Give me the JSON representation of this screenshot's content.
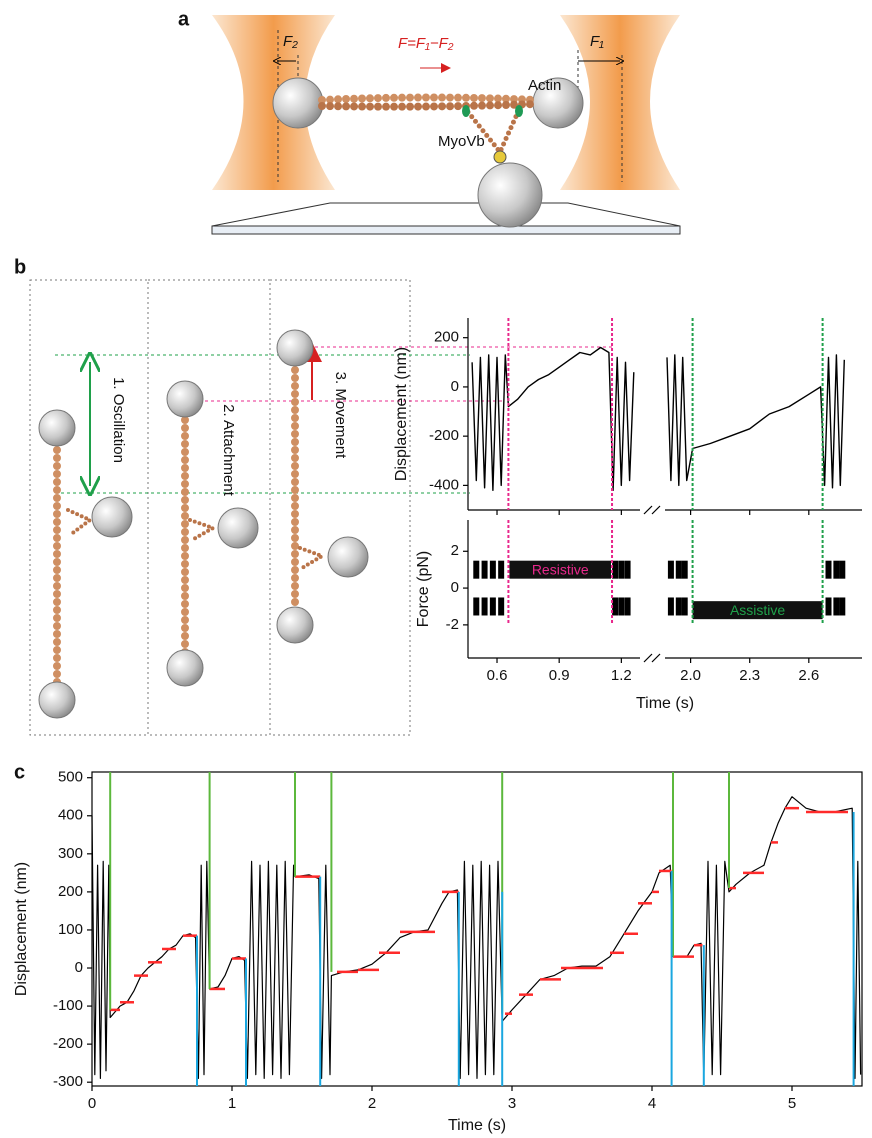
{
  "panel_labels": [
    "a",
    "b",
    "c"
  ],
  "diagram_a": {
    "f2": "F₂",
    "force_eq": "F=F₁−F₂",
    "f1": "F₁",
    "actin": "Actin",
    "myosin": "MyoVb"
  },
  "diagram_b": {
    "steps": [
      "1. Oscillation",
      "2. Attachment",
      "3. Movement"
    ]
  },
  "chart_data": [
    {
      "type": "line",
      "ylabel": "Displacement (nm)",
      "ylim": [
        -500,
        280
      ],
      "yticks": [
        -400,
        -200,
        0,
        200
      ],
      "x_segments": [
        {
          "xlim": [
            0.46,
            1.29
          ],
          "xticks": [
            0.6,
            0.9,
            1.2
          ]
        },
        {
          "xlim": [
            1.87,
            2.87
          ],
          "xticks": [
            {
              "value": 2,
              "label": "2.0"
            },
            2.3,
            2.6
          ]
        }
      ],
      "series": [
        {
          "color": "#000000",
          "x": [
            0.48,
            0.5,
            0.52,
            0.54,
            0.56,
            0.58,
            0.6,
            0.62,
            0.64,
            0.655,
            0.7,
            0.75,
            0.8,
            0.85,
            0.9,
            0.95,
            1.0,
            1.05,
            1.1,
            1.14,
            1.16,
            1.18,
            1.2,
            1.22,
            1.24,
            1.26,
            1.5,
            1.88,
            1.9,
            1.92,
            1.94,
            1.96,
            1.98,
            2.01,
            2.1,
            2.2,
            2.3,
            2.4,
            2.5,
            2.6,
            2.66,
            2.68,
            2.7,
            2.72,
            2.74,
            2.76,
            2.78
          ],
          "values": [
            100,
            -380,
            120,
            -410,
            130,
            -420,
            120,
            -400,
            130,
            -80,
            -50,
            0,
            30,
            50,
            80,
            110,
            140,
            130,
            160,
            140,
            -420,
            120,
            -400,
            100,
            -380,
            60,
            null,
            120,
            -380,
            130,
            -400,
            120,
            -380,
            -250,
            -230,
            -200,
            -170,
            -110,
            -80,
            -30,
            0,
            -400,
            120,
            -410,
            130,
            -400,
            110
          ]
        }
      ],
      "markers": [
        {
          "color": "#e8288c",
          "x": [
            0.655,
            1.155
          ]
        },
        {
          "color": "#1fa04a",
          "x": [
            2.01,
            2.67
          ]
        }
      ]
    },
    {
      "type": "scatter",
      "xlabel": "Time (s)",
      "ylabel": "Force  (pN)",
      "ylim": [
        -3.8,
        3.7
      ],
      "yticks": [
        -2,
        0,
        2
      ],
      "x_segments": [
        {
          "xlim": [
            0.46,
            1.29
          ],
          "xticks": [
            0.6,
            0.9,
            1.2
          ]
        },
        {
          "xlim": [
            1.87,
            2.87
          ],
          "xticks": [
            {
              "value": 2,
              "label": "2.0"
            },
            2.3,
            2.6
          ]
        }
      ],
      "series": [
        {
          "color": "#000000",
          "x": [
            0.5,
            0.5,
            0.54,
            0.54,
            0.58,
            0.58,
            0.62,
            0.62,
            1.17,
            1.17,
            1.2,
            1.2,
            1.23,
            1.23,
            1.9,
            1.9,
            1.94,
            1.94,
            1.97,
            1.97,
            2.7,
            2.7,
            2.74,
            2.74,
            2.77,
            2.77
          ],
          "values": [
            1,
            -1,
            1,
            -1,
            1,
            -1,
            1,
            -1,
            1,
            -1,
            1,
            -1,
            1,
            -1,
            1,
            -1,
            1,
            -1,
            1,
            -1,
            1,
            -1,
            1,
            -1,
            1,
            -1
          ]
        }
      ],
      "bands": [
        {
          "label": "Resistive",
          "label_color": "#e8288c",
          "x": [
            0.66,
            1.15
          ],
          "value": 1.0
        },
        {
          "label": "Assistive",
          "label_color": "#1fa04a",
          "x": [
            2.01,
            2.67
          ],
          "value": -1.2
        }
      ],
      "markers": [
        {
          "color": "#e8288c",
          "x": [
            0.655,
            1.155
          ]
        },
        {
          "color": "#1fa04a",
          "x": [
            2.01,
            2.67
          ]
        }
      ]
    },
    {
      "type": "line",
      "xlabel": "Time (s)",
      "ylabel": "Displacement (nm)",
      "xlim": [
        0,
        5.5
      ],
      "xticks": [
        0,
        1,
        2,
        3,
        4,
        5
      ],
      "ylim": [
        -310,
        515
      ],
      "yticks": [
        -300,
        -200,
        -100,
        0,
        100,
        200,
        300,
        400,
        500
      ],
      "series": [
        {
          "color": "#000000",
          "x": [
            0,
            0.02,
            0.04,
            0.06,
            0.08,
            0.1,
            0.12,
            0.13,
            0.2,
            0.25,
            0.3,
            0.35,
            0.4,
            0.45,
            0.5,
            0.55,
            0.6,
            0.65,
            0.7,
            0.74,
            0.76,
            0.78,
            0.8,
            0.82,
            0.84,
            0.9,
            0.95,
            1.0,
            1.05,
            1.09,
            1.11,
            1.14,
            1.17,
            1.2,
            1.23,
            1.26,
            1.29,
            1.32,
            1.35,
            1.38,
            1.41,
            1.44,
            1.45,
            1.55,
            1.62,
            1.64,
            1.67,
            1.7,
            1.71,
            1.8,
            1.9,
            2.0,
            2.1,
            2.2,
            2.3,
            2.4,
            2.5,
            2.55,
            2.61,
            2.63,
            2.66,
            2.69,
            2.72,
            2.75,
            2.78,
            2.81,
            2.84,
            2.87,
            2.9,
            2.93,
            3.0,
            3.1,
            3.2,
            3.3,
            3.4,
            3.5,
            3.6,
            3.7,
            3.8,
            3.9,
            4.0,
            4.05,
            4.13,
            4.15,
            4.25,
            4.3,
            4.35,
            4.37,
            4.4,
            4.43,
            4.46,
            4.49,
            4.52,
            4.55,
            4.6,
            4.7,
            4.8,
            4.85,
            4.9,
            4.95,
            5.0,
            5.1,
            5.2,
            5.3,
            5.43,
            5.45,
            5.47,
            5.49
          ],
          "values": [
            400,
            -280,
            270,
            -290,
            280,
            -270,
            270,
            -130,
            -100,
            -90,
            -60,
            -20,
            0,
            15,
            30,
            50,
            60,
            85,
            90,
            80,
            -290,
            270,
            -280,
            280,
            -55,
            -50,
            -20,
            25,
            30,
            20,
            -290,
            280,
            -280,
            270,
            -290,
            280,
            -280,
            270,
            -290,
            280,
            -280,
            270,
            240,
            245,
            235,
            -290,
            270,
            -280,
            -20,
            -10,
            -5,
            10,
            40,
            80,
            95,
            100,
            170,
            200,
            205,
            -290,
            280,
            -280,
            270,
            -290,
            280,
            -280,
            270,
            -280,
            280,
            -140,
            -110,
            -70,
            -30,
            -20,
            0,
            5,
            5,
            30,
            90,
            150,
            200,
            250,
            270,
            30,
            30,
            60,
            65,
            -290,
            280,
            -280,
            270,
            -280,
            280,
            200,
            220,
            250,
            270,
            330,
            380,
            420,
            450,
            420,
            410,
            410,
            420,
            -290,
            280,
            -280
          ]
        }
      ],
      "levels": {
        "color": "#ff2a2a",
        "start": [
          0.13,
          0.2,
          0.3,
          0.4,
          0.5,
          0.65,
          0.84,
          1.0,
          1.45,
          1.75,
          1.9,
          2.05,
          2.2,
          2.5,
          2.95,
          3.05,
          3.2,
          3.35,
          3.7,
          3.8,
          3.9,
          4.0,
          4.05,
          4.15,
          4.3,
          4.55,
          4.65,
          4.85,
          4.95,
          5.1
        ],
        "end": [
          0.2,
          0.3,
          0.4,
          0.5,
          0.6,
          0.75,
          0.95,
          1.1,
          1.63,
          1.9,
          2.05,
          2.2,
          2.45,
          2.62,
          3.0,
          3.15,
          3.35,
          3.65,
          3.8,
          3.9,
          4.0,
          4.05,
          4.14,
          4.3,
          4.36,
          4.6,
          4.8,
          4.9,
          5.05,
          5.4
        ],
        "values": [
          -110,
          -90,
          -20,
          15,
          50,
          85,
          -55,
          25,
          240,
          -10,
          -5,
          40,
          95,
          200,
          -120,
          -70,
          -30,
          0,
          40,
          90,
          170,
          200,
          255,
          30,
          60,
          210,
          250,
          330,
          420,
          410
        ]
      },
      "attach": {
        "color": "#5cb83c",
        "x": [
          0.13,
          0.84,
          1.45,
          1.71,
          2.93,
          4.15,
          4.55
        ]
      },
      "detach": {
        "color": "#1aa7e0",
        "x": [
          0.75,
          1.1,
          1.63,
          2.62,
          2.93,
          4.14,
          4.37,
          5.44
        ]
      }
    }
  ]
}
